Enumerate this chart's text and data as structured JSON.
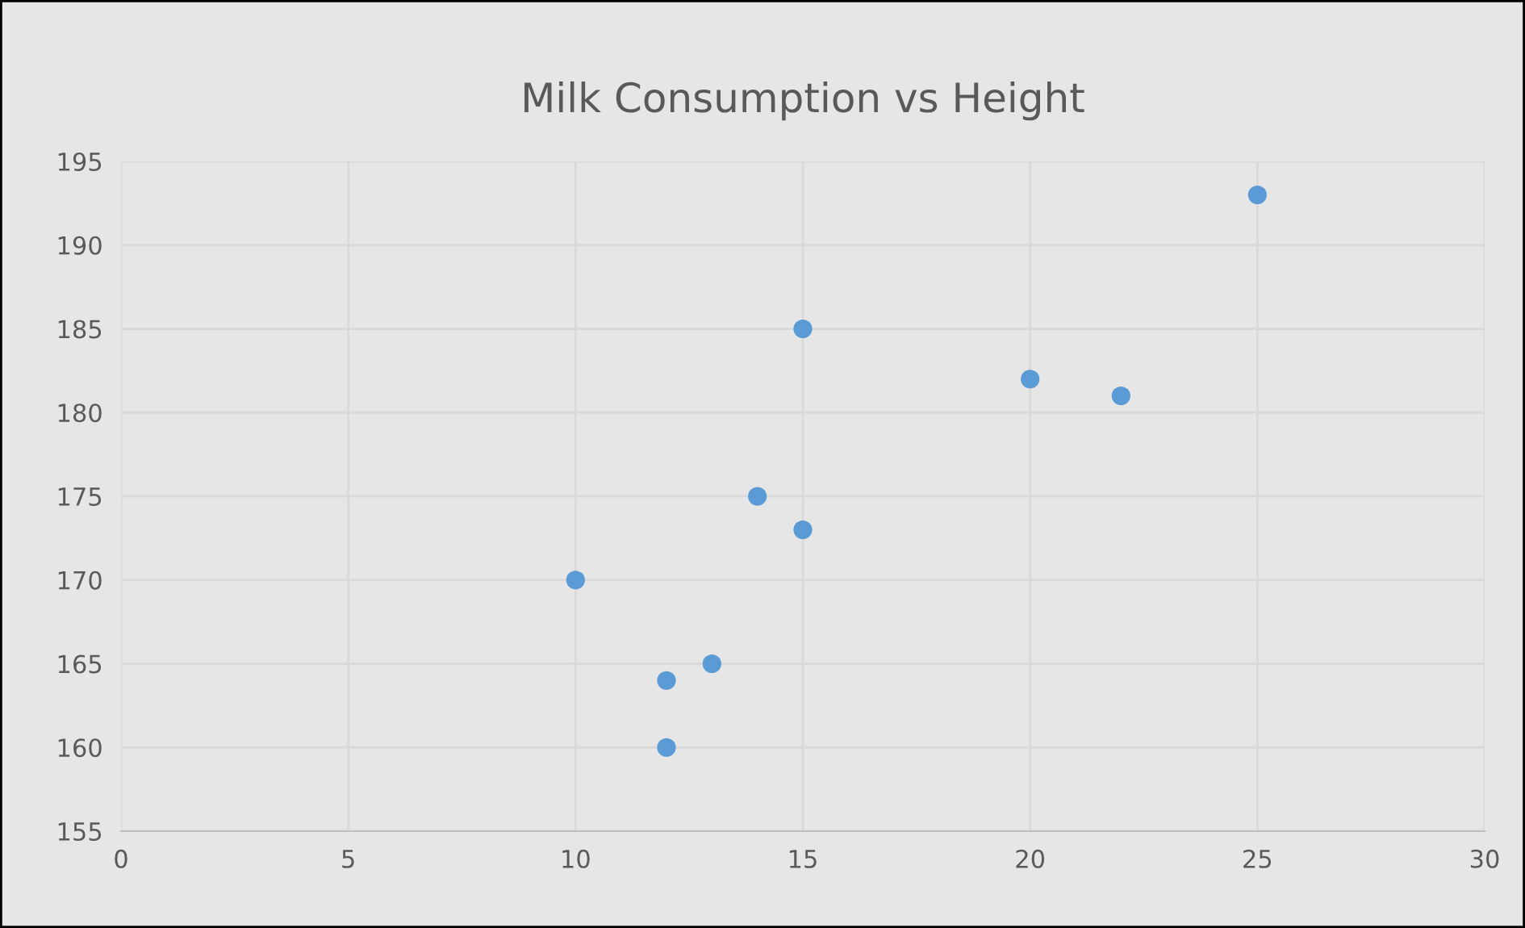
{
  "chart_data": {
    "type": "scatter",
    "title": "Milk Consumption vs Height",
    "x": [
      10,
      12,
      12,
      13,
      14,
      15,
      15,
      20,
      22,
      25
    ],
    "values": [
      170,
      164,
      160,
      165,
      175,
      173,
      185,
      182,
      181,
      193
    ],
    "color": "#5b9bd5",
    "xlim": [
      0,
      30
    ],
    "xticks": [
      0,
      5,
      10,
      15,
      20,
      25,
      30
    ],
    "ylim": [
      155,
      195
    ],
    "yticks": [
      155,
      160,
      165,
      170,
      175,
      180,
      185,
      190,
      195
    ],
    "grid": true,
    "marker": "circle"
  }
}
